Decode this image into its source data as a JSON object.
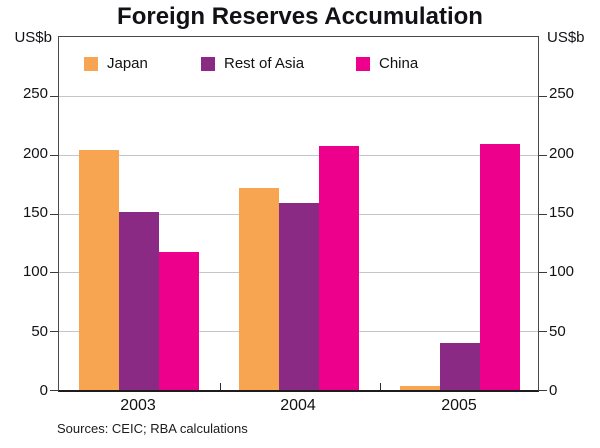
{
  "title": "Foreign Reserves Accumulation",
  "unit_left": "US$b",
  "unit_right": "US$b",
  "source_note": "Sources: CEIC; RBA calculations",
  "colors": {
    "japan": "#F8A551",
    "rest_of_asia": "#8B2A84",
    "china": "#EC008C",
    "gridline": "#C3C5CD",
    "frame": "#4A4A4A"
  },
  "chart_data": {
    "type": "bar",
    "title": "Foreign Reserves Accumulation",
    "categories": [
      "2003",
      "2004",
      "2005"
    ],
    "series": [
      {
        "name": "Japan",
        "color_key": "japan",
        "values": [
          204,
          172,
          3
        ]
      },
      {
        "name": "Rest of Asia",
        "color_key": "rest_of_asia",
        "values": [
          151,
          159,
          40
        ]
      },
      {
        "name": "China",
        "color_key": "china",
        "values": [
          117,
          207,
          209
        ]
      }
    ],
    "xlabel": "",
    "ylabel": "US$b",
    "ylim": [
      0,
      300
    ],
    "yticks": [
      0,
      50,
      100,
      150,
      200,
      250
    ],
    "grid": true,
    "legend_position": "top-inside"
  }
}
